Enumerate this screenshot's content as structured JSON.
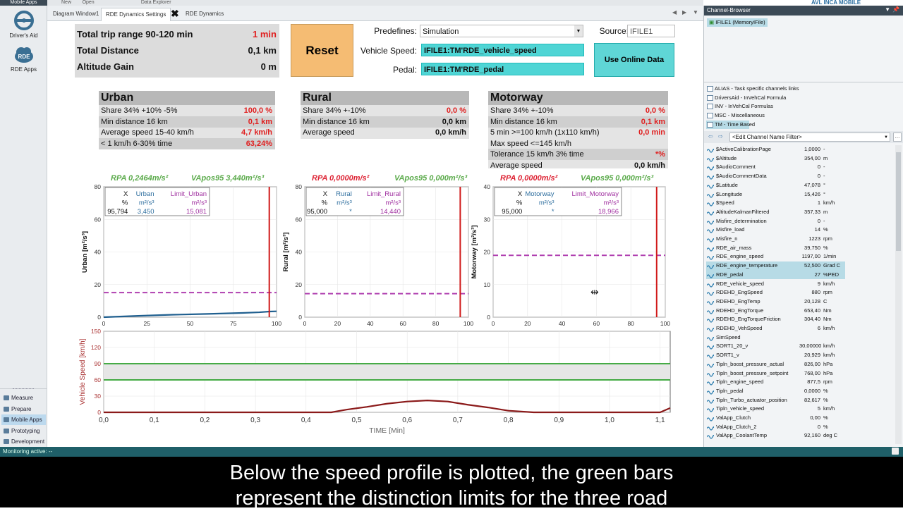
{
  "app": {
    "brand": "AVL INCA MOBILE"
  },
  "toolbar": {
    "items": [
      "New",
      "Open",
      "Data Explorer"
    ]
  },
  "left_apps": [
    {
      "label": "Mobile Apps"
    },
    {
      "label": "Driver's Aid"
    },
    {
      "label": "RDE Apps"
    }
  ],
  "tabs": [
    {
      "label": "Diagram Window1"
    },
    {
      "label": "RDE Dynamics Settings"
    },
    {
      "label": "RDE Dynamics"
    }
  ],
  "summary": {
    "rows": [
      {
        "label": "Total trip range 90-120 min",
        "value": "1 min",
        "red": true
      },
      {
        "label": "Total Distance",
        "value": "0,1 km",
        "red": false
      },
      {
        "label": "Altitude Gain",
        "value": "0 m",
        "red": false
      }
    ]
  },
  "controls": {
    "reset_label": "Reset",
    "predefines_label": "Predefines:",
    "predefines_value": "Simulation",
    "source_label": "Source:",
    "source_value": "IFILE1",
    "vehicle_speed_label": "Vehicle Speed:",
    "vehicle_speed_value": "IFILE1:TM'RDE_vehicle_speed",
    "pedal_label": "Pedal:",
    "pedal_value": "IFILE1:TM'RDE_pedal",
    "online_label": "Use Online Data"
  },
  "sections": {
    "urban": {
      "title": "Urban",
      "rows": [
        {
          "label": "Share 34% +10% -5%",
          "value": "100,0 %",
          "red": true
        },
        {
          "label": "Min distance 16 km",
          "value": "0,1 km",
          "red": true
        },
        {
          "label": "Average speed 15-40 km/h",
          "value": "4,7 km/h",
          "red": true
        },
        {
          "label": "< 1 km/h 6-30% time",
          "value": "63,24%",
          "red": true
        }
      ]
    },
    "rural": {
      "title": "Rural",
      "rows": [
        {
          "label": "Share 34% +-10%",
          "value": "0,0 %",
          "red": true
        },
        {
          "label": "Min distance 16 km",
          "value": "0,0 km",
          "red": false
        },
        {
          "label": "Average speed",
          "value": "0,0 km/h",
          "red": false
        }
      ]
    },
    "motorway": {
      "title": "Motorway",
      "rows": [
        {
          "label": "Share 34% +-10%",
          "value": "0,0 %",
          "red": true
        },
        {
          "label": "Min distance 16 km",
          "value": "0,1 km",
          "red": true
        },
        {
          "label": "5 min >=100 km/h (1x110 km/h)",
          "value": "0,0 min",
          "red": true
        },
        {
          "label": "Max speed <=145 km/h",
          "value": "",
          "red": false
        },
        {
          "label": "Tolerance 15 km/h 3% time",
          "value": "*%",
          "red": true
        },
        {
          "label": "Average speed",
          "value": "0,0 km/h",
          "red": false
        }
      ]
    }
  },
  "chart_titles": {
    "urban": {
      "rpa": "RPA 0,2464m/s²",
      "vapos": "VApos95 3,440m²/s³"
    },
    "rural": {
      "rpa": "RPA 0,0000m/s²",
      "vapos": "VApos95 0,000m²/s³"
    },
    "motorway": {
      "rpa": "RPA 0,0000m/s²",
      "vapos": "VApos95 0,000m²/s³"
    }
  },
  "legends": {
    "urban": {
      "x": "X",
      "x_unit": "%",
      "x_val": "95,794",
      "s1": "Urban",
      "s1_unit": "m²/s³",
      "s1_val": "3,450",
      "s2": "Limit_Urban",
      "s2_unit": "m²/s³",
      "s2_val": "15,081"
    },
    "rural": {
      "x": "X",
      "x_unit": "%",
      "x_val": "95,000",
      "s1": "Rural",
      "s1_unit": "m²/s³",
      "s1_val": "*",
      "s2": "Limit_Rural",
      "s2_unit": "m²/s³",
      "s2_val": "14,440"
    },
    "motorway": {
      "x": "X",
      "x_unit": "%",
      "x_val": "95,000",
      "s1": "Motorway",
      "s1_unit": "m²/s³",
      "s1_val": "*",
      "s2": "Limit_Motorway",
      "s2_unit": "m²/s³",
      "s2_val": "18,966"
    }
  },
  "chart_data": [
    {
      "type": "line",
      "id": "urban",
      "ylabel": "Urban [m²/s³]",
      "xlim": [
        0,
        100
      ],
      "ylim": [
        0,
        80
      ],
      "xticks": [
        0,
        25,
        50,
        75,
        100
      ],
      "yticks": [
        0,
        20,
        40,
        60,
        80
      ],
      "series": [
        {
          "name": "Urban",
          "color": "#1f5f8f",
          "x": [
            0,
            20,
            40,
            60,
            80,
            90,
            95.8,
            100
          ],
          "y": [
            0,
            0.8,
            1.5,
            2.0,
            2.6,
            3.0,
            3.45,
            3.6
          ]
        },
        {
          "name": "Limit_Urban",
          "color": "#b040b0",
          "dashed": true,
          "x": [
            0,
            100
          ],
          "y": [
            15.081,
            15.081
          ]
        }
      ],
      "cursor_x": 95.794,
      "grid": true
    },
    {
      "type": "line",
      "id": "rural",
      "ylabel": "Rural [m²/s³]",
      "xlim": [
        0,
        100
      ],
      "ylim": [
        0,
        80
      ],
      "xticks": [
        0,
        20,
        40,
        60,
        80,
        100
      ],
      "yticks": [
        0,
        20,
        40,
        60,
        80
      ],
      "series": [
        {
          "name": "Limit_Rural",
          "color": "#b040b0",
          "dashed": true,
          "x": [
            0,
            100
          ],
          "y": [
            14.44,
            14.44
          ]
        }
      ],
      "cursor_x": 95,
      "grid": true
    },
    {
      "type": "line",
      "id": "motorway",
      "ylabel": "Motorway [m²/s³]",
      "xlim": [
        0,
        100
      ],
      "ylim": [
        0,
        40
      ],
      "xticks": [
        0,
        20,
        40,
        60,
        80,
        100
      ],
      "yticks": [
        0,
        10,
        20,
        30,
        40
      ],
      "series": [
        {
          "name": "Limit_Motorway",
          "color": "#b040b0",
          "dashed": true,
          "x": [
            0,
            100
          ],
          "y": [
            18.966,
            18.966
          ]
        }
      ],
      "cursor_x": 95,
      "grid": true
    },
    {
      "type": "line",
      "id": "speed",
      "xlabel": "TIME [Min]",
      "ylabel": "Vehicle Speed [km/h]",
      "xlim": [
        0,
        1.12
      ],
      "ylim": [
        0,
        150
      ],
      "xticks": [
        0,
        0.1,
        0.2,
        0.3,
        0.4,
        0.5,
        0.6,
        0.7,
        0.8,
        0.9,
        1.0,
        1.1
      ],
      "xtick_labels": [
        "0,0",
        "0,1",
        "0,2",
        "0,3",
        "0,4",
        "0,5",
        "0,6",
        "0,7",
        "0,8",
        "0,9",
        "1,0",
        "1,1"
      ],
      "yticks": [
        0,
        30,
        60,
        90,
        120,
        150
      ],
      "band": [
        60,
        90
      ],
      "band_color": "#2ca02c",
      "series": [
        {
          "name": "Vehicle Speed",
          "color": "#8b1a1a",
          "x": [
            0,
            0.45,
            0.48,
            0.52,
            0.56,
            0.6,
            0.64,
            0.68,
            0.72,
            0.76,
            0.8,
            0.85,
            0.9,
            1.0,
            1.1,
            1.12
          ],
          "y": [
            0,
            0,
            5,
            10,
            16,
            20,
            22,
            20,
            14,
            9,
            3,
            0,
            0,
            0,
            0,
            8
          ]
        }
      ],
      "grid": true
    }
  ],
  "channel_browser": {
    "title": "Channel-Browser",
    "file": "IFILE1 (MemoryIFile)",
    "groups": [
      {
        "label": "ALIAS - Task specific channels links",
        "sel": false
      },
      {
        "label": "DriversAid - InVehCal Formula",
        "sel": false
      },
      {
        "label": "INV - InVehCal Formulas",
        "sel": false
      },
      {
        "label": "MSC - Miscellaneous",
        "sel": false
      },
      {
        "label": "TM - Time Based",
        "sel": true
      }
    ],
    "filter_placeholder": "<Edit Channel Name Filter>",
    "channels": [
      {
        "n": "$ActiveCalibrationPage",
        "v": "1,0000",
        "u": "-",
        "hl": false
      },
      {
        "n": "$Altitude",
        "v": "354,00",
        "u": "m",
        "hl": false
      },
      {
        "n": "$AudioComment",
        "v": "0",
        "u": "-",
        "hl": false
      },
      {
        "n": "$AudioCommentData",
        "v": "0",
        "u": "-",
        "hl": false
      },
      {
        "n": "$Latitude",
        "v": "47,078",
        "u": "°",
        "hl": false
      },
      {
        "n": "$Longitude",
        "v": "15,426",
        "u": "°",
        "hl": false
      },
      {
        "n": "$Speed",
        "v": "1",
        "u": "km/h",
        "hl": false
      },
      {
        "n": "AltitudeKalmanFiltered",
        "v": "357,33",
        "u": "m",
        "hl": false
      },
      {
        "n": "Misfire_determination",
        "v": "0",
        "u": "-",
        "hl": false
      },
      {
        "n": "Misfire_load",
        "v": "14",
        "u": "%",
        "hl": false
      },
      {
        "n": "Misfire_n",
        "v": "1223",
        "u": "rpm",
        "hl": false
      },
      {
        "n": "RDE_air_mass",
        "v": "39,750",
        "u": "%",
        "hl": false
      },
      {
        "n": "RDE_engine_speed",
        "v": "1197,00",
        "u": "1/min",
        "hl": false
      },
      {
        "n": "RDE_engine_temperature",
        "v": "52,500",
        "u": "Grad C",
        "hl": true
      },
      {
        "n": "RDE_pedal",
        "v": "27",
        "u": "%PED",
        "hl": true
      },
      {
        "n": "RDE_vehicle_speed",
        "v": "9",
        "u": "km/h",
        "hl": false
      },
      {
        "n": "RDEHD_EngSpeed",
        "v": "880",
        "u": "rpm",
        "hl": false
      },
      {
        "n": "RDEHD_EngTemp",
        "v": "20,128",
        "u": "C",
        "hl": false
      },
      {
        "n": "RDEHD_EngTorque",
        "v": "653,40",
        "u": "Nm",
        "hl": false
      },
      {
        "n": "RDEHD_EngTorqueFriction",
        "v": "304,40",
        "u": "Nm",
        "hl": false
      },
      {
        "n": "RDEHD_VehSpeed",
        "v": "6",
        "u": "km/h",
        "hl": false
      },
      {
        "n": "SimSpeed",
        "v": "",
        "u": "",
        "hl": false
      },
      {
        "n": "SORT1_20_v",
        "v": "30,00000",
        "u": "km/h",
        "hl": false
      },
      {
        "n": "SORT1_v",
        "v": "20,929",
        "u": "km/h",
        "hl": false
      },
      {
        "n": "Tipln_boost_pressure_actual",
        "v": "826,00",
        "u": "hPa",
        "hl": false
      },
      {
        "n": "Tipln_boost_pressure_setpoint",
        "v": "768,00",
        "u": "hPa",
        "hl": false
      },
      {
        "n": "Tipln_engine_speed",
        "v": "877,5",
        "u": "rpm",
        "hl": false
      },
      {
        "n": "Tipln_pedal",
        "v": "0,0000",
        "u": "%",
        "hl": false
      },
      {
        "n": "Tipln_Turbo_actuator_position",
        "v": "82,617",
        "u": "%",
        "hl": false
      },
      {
        "n": "Tipln_vehicle_speed",
        "v": "5",
        "u": "km/h",
        "hl": false
      },
      {
        "n": "ValApp_Clutch",
        "v": "0,00",
        "u": "%",
        "hl": false
      },
      {
        "n": "ValApp_Clutch_2",
        "v": "0",
        "u": "%",
        "hl": false
      },
      {
        "n": "ValApp_CoolantTemp",
        "v": "92,160",
        "u": "deg C",
        "hl": false
      }
    ]
  },
  "nav": [
    {
      "label": "Measure",
      "sel": false
    },
    {
      "label": "Prepare",
      "sel": false
    },
    {
      "label": "Mobile Apps",
      "sel": true
    },
    {
      "label": "Prototyping ...",
      "sel": false
    },
    {
      "label": "Development",
      "sel": false
    }
  ],
  "status": {
    "text": "Monitoring active: --"
  },
  "subtitle": {
    "line1": "Below the speed profile is plotted, the green bars",
    "line2": "represent the distinction limits for the three road"
  }
}
